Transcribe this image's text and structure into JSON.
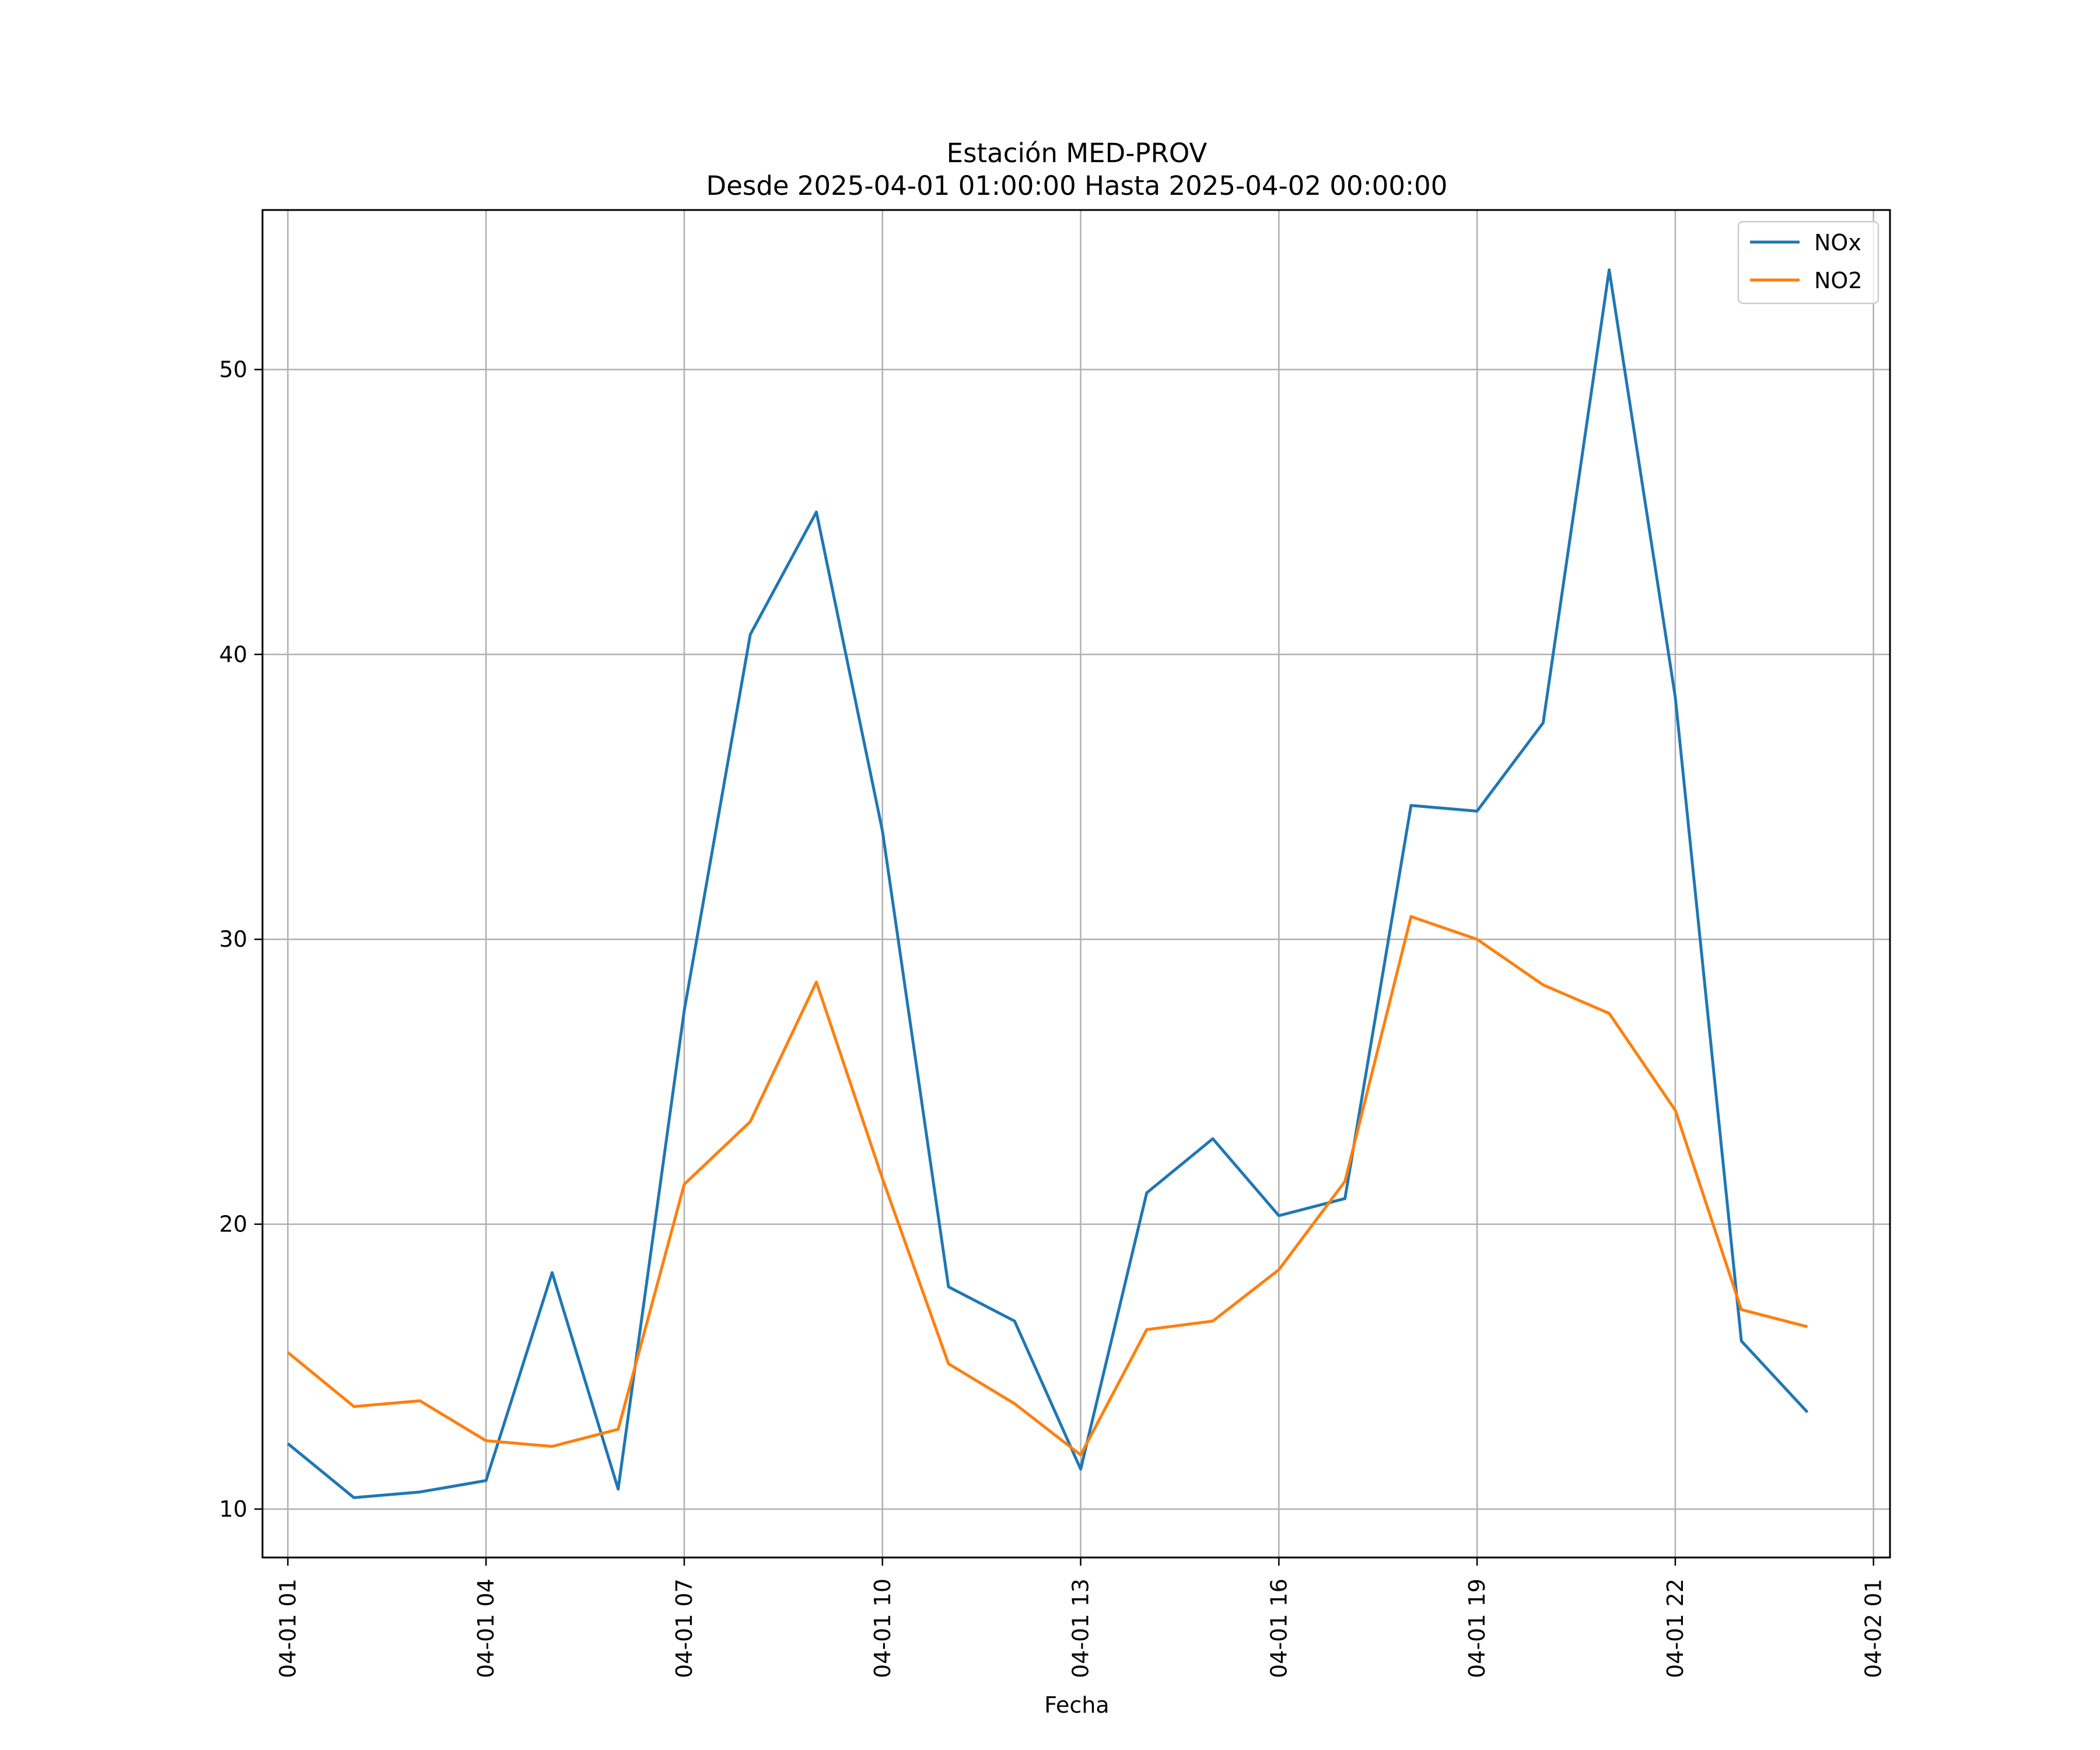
{
  "chart_data": {
    "type": "line",
    "title": "Estación MED-PROV",
    "subtitle": "Desde 2025-04-01 01:00:00 Hasta 2025-04-02 00:00:00",
    "xlabel": "Fecha",
    "ylabel": "",
    "x": [
      "2025-04-01 01:00",
      "2025-04-01 02:00",
      "2025-04-01 03:00",
      "2025-04-01 04:00",
      "2025-04-01 05:00",
      "2025-04-01 06:00",
      "2025-04-01 07:00",
      "2025-04-01 08:00",
      "2025-04-01 09:00",
      "2025-04-01 10:00",
      "2025-04-01 11:00",
      "2025-04-01 12:00",
      "2025-04-01 13:00",
      "2025-04-01 14:00",
      "2025-04-01 15:00",
      "2025-04-01 16:00",
      "2025-04-01 17:00",
      "2025-04-01 18:00",
      "2025-04-01 19:00",
      "2025-04-01 20:00",
      "2025-04-01 21:00",
      "2025-04-01 22:00",
      "2025-04-01 23:00",
      "2025-04-02 00:00"
    ],
    "series": [
      {
        "name": "NOx",
        "color": "#1f77b4",
        "values": [
          12.3,
          10.4,
          10.6,
          11.0,
          18.3,
          10.7,
          27.5,
          40.7,
          45.0,
          33.8,
          17.8,
          16.6,
          11.4,
          21.1,
          23.0,
          20.3,
          20.9,
          34.7,
          34.5,
          37.6,
          53.5,
          38.5,
          15.9,
          13.4
        ]
      },
      {
        "name": "NO2",
        "color": "#ff7f0e",
        "values": [
          15.5,
          13.6,
          13.8,
          12.4,
          12.2,
          12.8,
          21.4,
          23.6,
          28.5,
          21.6,
          15.1,
          13.7,
          11.9,
          16.3,
          16.6,
          18.4,
          21.5,
          30.8,
          30.0,
          28.4,
          27.4,
          24.0,
          17.0,
          16.4
        ]
      }
    ],
    "xticks": [
      "04-01 01",
      "04-01 04",
      "04-01 07",
      "04-01 10",
      "04-01 13",
      "04-01 16",
      "04-01 19",
      "04-01 22",
      "04-02 01"
    ],
    "yticks": [
      10,
      20,
      30,
      40,
      50
    ],
    "ylim": [
      8.3,
      55.6
    ],
    "xlim": [
      "2025-04-01 00:37",
      "2025-04-02 01:15"
    ],
    "grid": true,
    "legend": "top-right"
  }
}
